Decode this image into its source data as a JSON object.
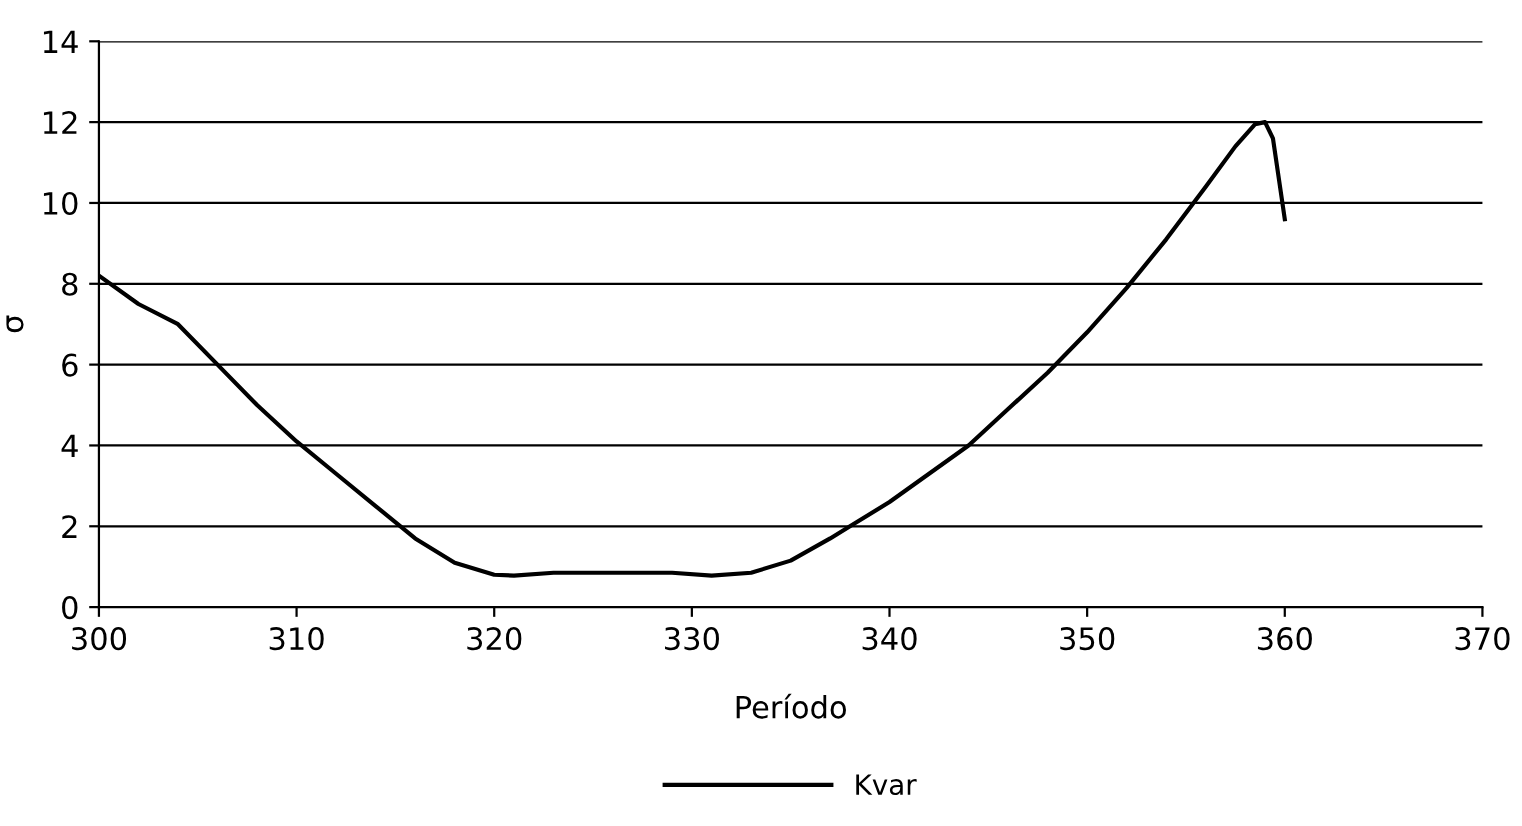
{
  "chart_data": {
    "type": "line",
    "xlabel": "Período",
    "ylabel": "σ",
    "xlim": [
      300,
      370
    ],
    "xticks": [
      300,
      310,
      320,
      330,
      340,
      350,
      360,
      370
    ],
    "ylim": [
      0,
      14
    ],
    "yticks": [
      0,
      2,
      4,
      6,
      8,
      10,
      12,
      14
    ],
    "grid": "y",
    "legend": "bottom",
    "marker": "none",
    "line_style": "solid",
    "series": [
      {
        "name": "Kvar",
        "color": "#000000",
        "x": [
          300,
          302,
          304,
          306,
          308,
          310,
          312,
          314,
          316,
          318,
          320,
          321,
          323,
          326,
          329,
          331,
          333,
          335,
          337,
          338,
          340,
          342,
          344,
          346,
          348,
          350,
          352,
          354,
          356,
          357.5,
          358.5,
          359,
          359.4,
          360
        ],
        "values": [
          8.2,
          7.5,
          7.0,
          6.0,
          5.0,
          4.1,
          3.3,
          2.5,
          1.7,
          1.1,
          0.8,
          0.78,
          0.85,
          0.85,
          0.85,
          0.78,
          0.85,
          1.15,
          1.7,
          2.0,
          2.6,
          3.3,
          4.0,
          4.9,
          5.8,
          6.8,
          7.9,
          9.1,
          10.4,
          11.4,
          11.95,
          12.0,
          11.6,
          9.6
        ]
      }
    ]
  }
}
